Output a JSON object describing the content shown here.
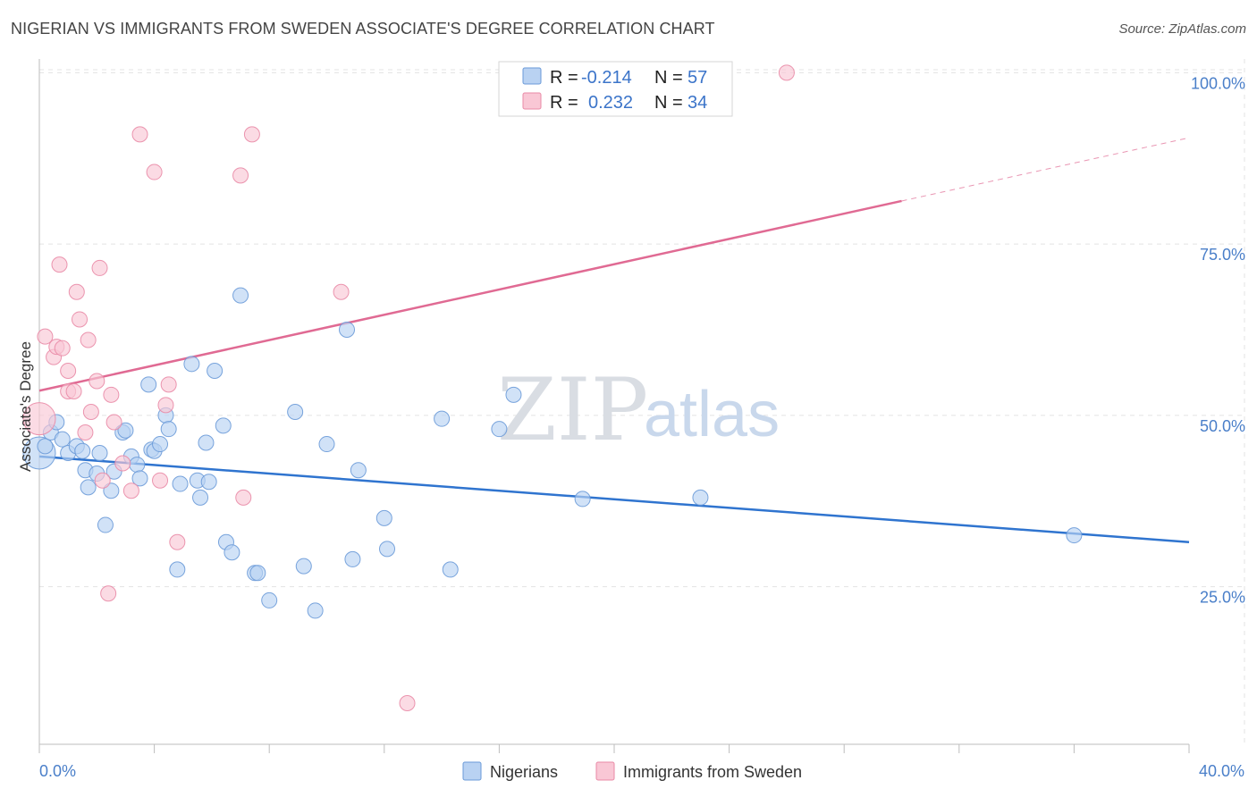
{
  "header": {
    "title": "NIGERIAN VS IMMIGRANTS FROM SWEDEN ASSOCIATE'S DEGREE CORRELATION CHART",
    "source": "Source: ZipAtlas.com"
  },
  "colors": {
    "blue_fill": "#b9d2f2",
    "blue_stroke": "#6a9ad8",
    "blue_line": "#2f74cf",
    "pink_fill": "#f9c7d5",
    "pink_stroke": "#e98aa6",
    "pink_line": "#e06a93"
  },
  "watermark": {
    "zip": "ZIP",
    "atlas": "atlas"
  },
  "legend": {
    "rows": [
      {
        "r_label": "R =",
        "r_value": "-0.214",
        "n_label": "N =",
        "n_value": "57"
      },
      {
        "r_label": "R =",
        "r_value": "0.232",
        "n_label": "N =",
        "n_value": "34"
      }
    ]
  },
  "chart_data": {
    "type": "scatter",
    "title": "NIGERIAN VS IMMIGRANTS FROM SWEDEN ASSOCIATE'S DEGREE CORRELATION CHART",
    "xlabel": "",
    "ylabel": "Associate's Degree",
    "xlim": [
      0,
      40
    ],
    "ylim": [
      2,
      102
    ],
    "x_tick_labels": [
      "0.0%",
      "40.0%"
    ],
    "y_ticks": [
      25,
      50,
      75,
      100
    ],
    "y_tick_labels": [
      "25.0%",
      "50.0%",
      "75.0%",
      "100.0%"
    ],
    "grid": true,
    "series": [
      {
        "name": "Nigerians",
        "color": "blue",
        "trend": {
          "x0": 0,
          "y0": 44.0,
          "x1": 40,
          "y1": 31.5,
          "solid_to": 40
        },
        "points": [
          {
            "x": 0.0,
            "y": 44.5,
            "s": 2
          },
          {
            "x": 0.2,
            "y": 45.5,
            "s": 1
          },
          {
            "x": 0.4,
            "y": 47.5,
            "s": 1
          },
          {
            "x": 0.6,
            "y": 49.0,
            "s": 1
          },
          {
            "x": 0.8,
            "y": 46.5,
            "s": 1
          },
          {
            "x": 1.0,
            "y": 44.5,
            "s": 1
          },
          {
            "x": 1.3,
            "y": 45.5,
            "s": 1
          },
          {
            "x": 1.5,
            "y": 44.8,
            "s": 1
          },
          {
            "x": 1.6,
            "y": 42.0,
            "s": 1
          },
          {
            "x": 1.7,
            "y": 39.5,
            "s": 1
          },
          {
            "x": 2.0,
            "y": 41.5,
            "s": 1
          },
          {
            "x": 2.1,
            "y": 44.5,
            "s": 1
          },
          {
            "x": 2.3,
            "y": 34.0,
            "s": 1
          },
          {
            "x": 2.5,
            "y": 39.0,
            "s": 1
          },
          {
            "x": 2.6,
            "y": 41.8,
            "s": 1
          },
          {
            "x": 2.9,
            "y": 47.5,
            "s": 1
          },
          {
            "x": 3.0,
            "y": 47.8,
            "s": 1
          },
          {
            "x": 3.2,
            "y": 44.0,
            "s": 1
          },
          {
            "x": 3.4,
            "y": 42.8,
            "s": 1
          },
          {
            "x": 3.5,
            "y": 40.8,
            "s": 1
          },
          {
            "x": 3.8,
            "y": 54.5,
            "s": 1
          },
          {
            "x": 3.9,
            "y": 45.0,
            "s": 1
          },
          {
            "x": 4.0,
            "y": 44.8,
            "s": 1
          },
          {
            "x": 4.2,
            "y": 45.8,
            "s": 1
          },
          {
            "x": 4.4,
            "y": 50.0,
            "s": 1
          },
          {
            "x": 4.5,
            "y": 48.0,
            "s": 1
          },
          {
            "x": 4.8,
            "y": 27.5,
            "s": 1
          },
          {
            "x": 4.9,
            "y": 40.0,
            "s": 1
          },
          {
            "x": 5.3,
            "y": 57.5,
            "s": 1
          },
          {
            "x": 5.5,
            "y": 40.5,
            "s": 1
          },
          {
            "x": 5.6,
            "y": 38.0,
            "s": 1
          },
          {
            "x": 5.8,
            "y": 46.0,
            "s": 1
          },
          {
            "x": 5.9,
            "y": 40.3,
            "s": 1
          },
          {
            "x": 6.1,
            "y": 56.5,
            "s": 1
          },
          {
            "x": 6.4,
            "y": 48.5,
            "s": 1
          },
          {
            "x": 6.5,
            "y": 31.5,
            "s": 1
          },
          {
            "x": 6.7,
            "y": 30.0,
            "s": 1
          },
          {
            "x": 7.0,
            "y": 67.5,
            "s": 1
          },
          {
            "x": 7.5,
            "y": 27.0,
            "s": 1
          },
          {
            "x": 7.6,
            "y": 27.0,
            "s": 1
          },
          {
            "x": 8.0,
            "y": 23.0,
            "s": 1
          },
          {
            "x": 8.9,
            "y": 50.5,
            "s": 1
          },
          {
            "x": 9.2,
            "y": 28.0,
            "s": 1
          },
          {
            "x": 9.6,
            "y": 21.5,
            "s": 1
          },
          {
            "x": 10.0,
            "y": 45.8,
            "s": 1
          },
          {
            "x": 10.7,
            "y": 62.5,
            "s": 1
          },
          {
            "x": 10.9,
            "y": 29.0,
            "s": 1
          },
          {
            "x": 11.1,
            "y": 42.0,
            "s": 1
          },
          {
            "x": 12.0,
            "y": 35.0,
            "s": 1
          },
          {
            "x": 12.1,
            "y": 30.5,
            "s": 1
          },
          {
            "x": 14.3,
            "y": 27.5,
            "s": 1
          },
          {
            "x": 14.0,
            "y": 49.5,
            "s": 1
          },
          {
            "x": 16.0,
            "y": 48.0,
            "s": 1
          },
          {
            "x": 16.5,
            "y": 53.0,
            "s": 1
          },
          {
            "x": 18.9,
            "y": 37.8,
            "s": 1
          },
          {
            "x": 23.0,
            "y": 38.0,
            "s": 1
          },
          {
            "x": 36.0,
            "y": 32.5,
            "s": 1
          }
        ]
      },
      {
        "name": "Immigrants from Sweden",
        "color": "pink",
        "trend": {
          "x0": 0,
          "y0": 53.6,
          "x1": 40,
          "y1": 90.5,
          "solid_to": 30.0
        },
        "points": [
          {
            "x": 0.0,
            "y": 49.5,
            "s": 2
          },
          {
            "x": 0.2,
            "y": 61.5,
            "s": 1
          },
          {
            "x": 0.5,
            "y": 58.5,
            "s": 1
          },
          {
            "x": 0.6,
            "y": 60.0,
            "s": 1
          },
          {
            "x": 0.7,
            "y": 72.0,
            "s": 1
          },
          {
            "x": 0.8,
            "y": 59.8,
            "s": 1
          },
          {
            "x": 1.0,
            "y": 53.5,
            "s": 1
          },
          {
            "x": 1.2,
            "y": 53.5,
            "s": 1
          },
          {
            "x": 1.3,
            "y": 68.0,
            "s": 1
          },
          {
            "x": 1.4,
            "y": 64.0,
            "s": 1
          },
          {
            "x": 1.6,
            "y": 47.5,
            "s": 1
          },
          {
            "x": 1.7,
            "y": 61.0,
            "s": 1
          },
          {
            "x": 1.8,
            "y": 50.5,
            "s": 1
          },
          {
            "x": 2.0,
            "y": 55.0,
            "s": 1
          },
          {
            "x": 2.1,
            "y": 71.5,
            "s": 1
          },
          {
            "x": 2.2,
            "y": 40.5,
            "s": 1
          },
          {
            "x": 2.4,
            "y": 24.0,
            "s": 1
          },
          {
            "x": 2.5,
            "y": 53.0,
            "s": 1
          },
          {
            "x": 2.6,
            "y": 49.0,
            "s": 1
          },
          {
            "x": 2.9,
            "y": 43.0,
            "s": 1
          },
          {
            "x": 3.2,
            "y": 39.0,
            "s": 1
          },
          {
            "x": 3.5,
            "y": 91.0,
            "s": 1
          },
          {
            "x": 4.0,
            "y": 85.5,
            "s": 1
          },
          {
            "x": 4.2,
            "y": 40.5,
            "s": 1
          },
          {
            "x": 4.4,
            "y": 51.5,
            "s": 1
          },
          {
            "x": 4.5,
            "y": 54.5,
            "s": 1
          },
          {
            "x": 4.8,
            "y": 31.5,
            "s": 1
          },
          {
            "x": 7.0,
            "y": 85.0,
            "s": 1
          },
          {
            "x": 7.1,
            "y": 38.0,
            "s": 1
          },
          {
            "x": 7.4,
            "y": 91.0,
            "s": 1
          },
          {
            "x": 10.5,
            "y": 68.0,
            "s": 1
          },
          {
            "x": 12.8,
            "y": 8.0,
            "s": 1
          },
          {
            "x": 26.0,
            "y": 100.0,
            "s": 1
          },
          {
            "x": 1.0,
            "y": 56.5,
            "s": 1
          }
        ]
      }
    ]
  }
}
